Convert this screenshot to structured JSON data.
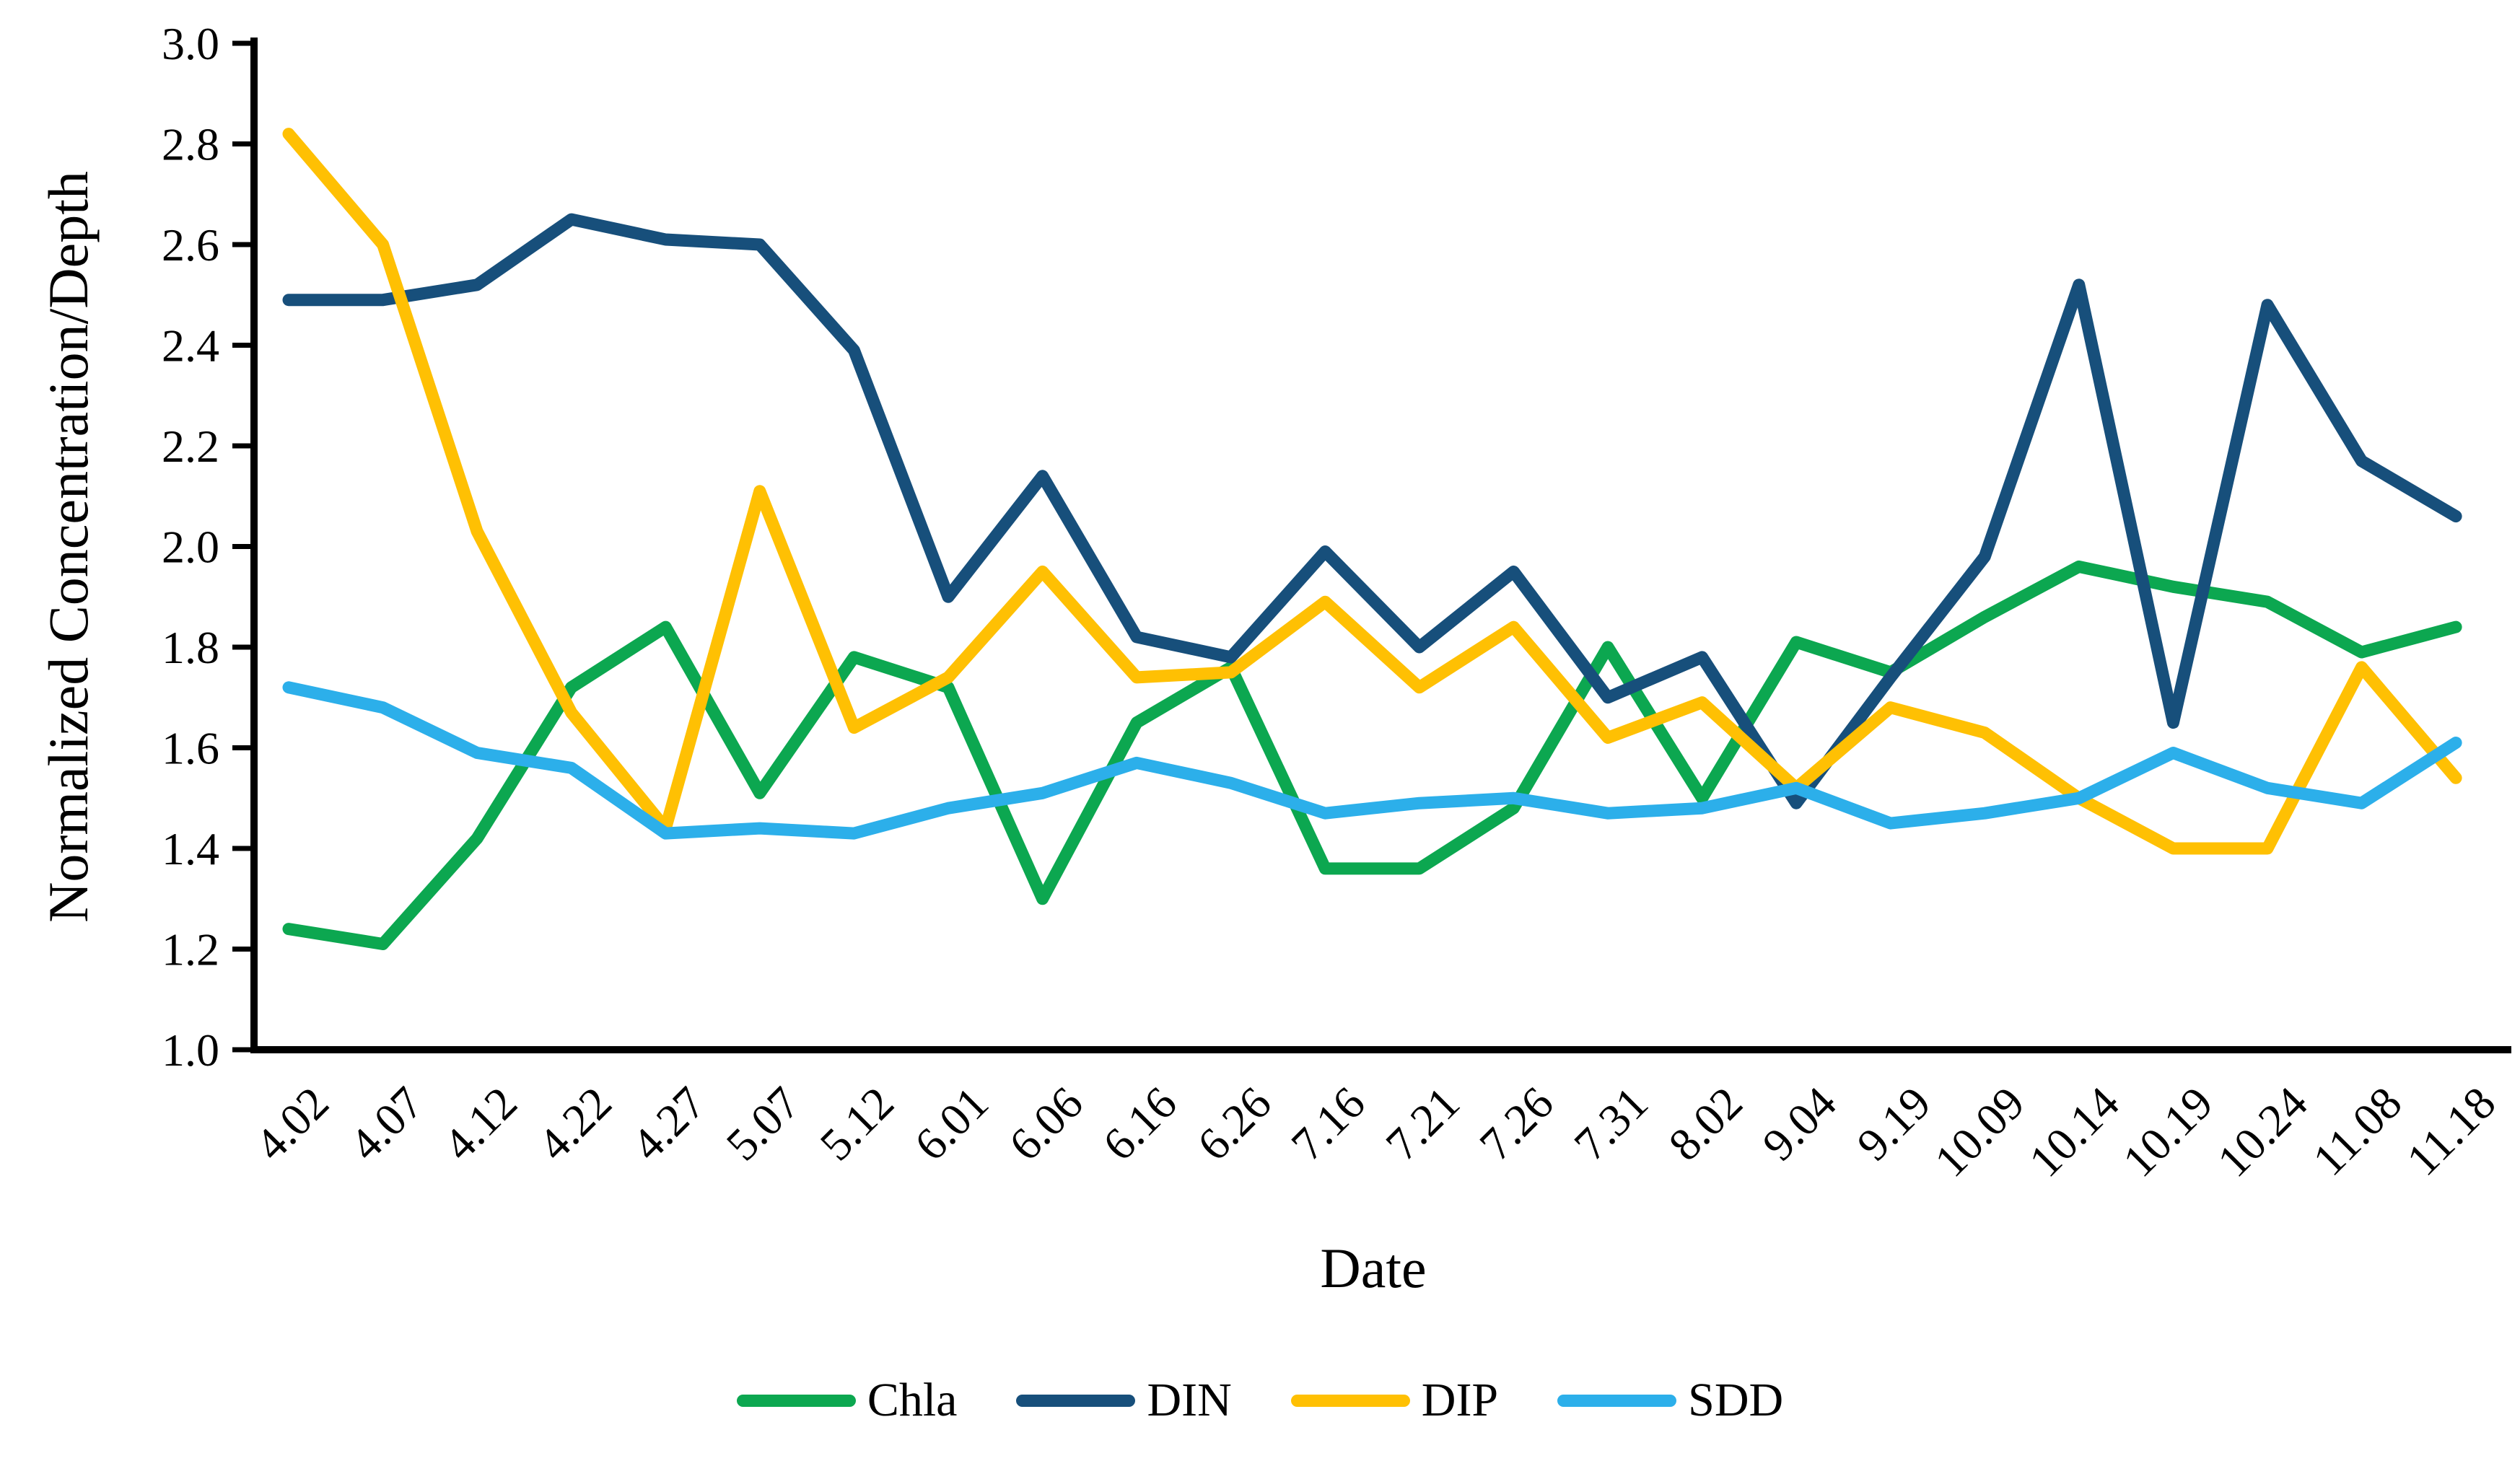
{
  "chart_data": {
    "type": "line",
    "title": "",
    "xlabel": "Date",
    "ylabel": "Normalized Concentration/Depth",
    "ylim": [
      1.0,
      3.0
    ],
    "ytick_step": 0.2,
    "ytick_labels": [
      "1.0",
      "1.2",
      "1.4",
      "1.6",
      "1.8",
      "2.0",
      "2.2",
      "2.4",
      "2.6",
      "2.8",
      "3.0"
    ],
    "grid": false,
    "legend_position": "bottom",
    "axis_color": "#000000",
    "categories": [
      "4.02",
      "4.07",
      "4.12",
      "4.22",
      "4.27",
      "5.07",
      "5.12",
      "6.01",
      "6.06",
      "6.16",
      "6.26",
      "7.16",
      "7.21",
      "7.26",
      "7.31",
      "8.02",
      "9.04",
      "9.19",
      "10.09",
      "10.14",
      "10.19",
      "10.24",
      "11.08",
      "11.18"
    ],
    "series": [
      {
        "name": "Chla",
        "color": "#0CA750",
        "values": [
          1.24,
          1.21,
          1.42,
          1.72,
          1.84,
          1.51,
          1.78,
          1.72,
          1.3,
          1.65,
          1.76,
          1.36,
          1.36,
          1.48,
          1.8,
          1.5,
          1.81,
          1.75,
          1.86,
          1.96,
          1.92,
          1.89,
          1.79,
          1.84
        ]
      },
      {
        "name": "DIN",
        "color": "#174F7B",
        "values": [
          2.49,
          2.49,
          2.52,
          2.65,
          2.61,
          2.6,
          2.39,
          1.9,
          2.14,
          1.82,
          1.78,
          1.99,
          1.8,
          1.95,
          1.7,
          1.78,
          1.49,
          1.74,
          1.98,
          2.52,
          1.65,
          2.48,
          2.17,
          2.06
        ]
      },
      {
        "name": "DIP",
        "color": "#FFC003",
        "values": [
          2.82,
          2.6,
          2.03,
          1.67,
          1.44,
          2.11,
          1.64,
          1.74,
          1.95,
          1.74,
          1.75,
          1.89,
          1.72,
          1.84,
          1.62,
          1.69,
          1.52,
          1.68,
          1.63,
          1.5,
          1.4,
          1.4,
          1.76,
          1.54
        ]
      },
      {
        "name": "SDD",
        "color": "#2CAFEA",
        "values": [
          1.72,
          1.68,
          1.59,
          1.56,
          1.43,
          1.44,
          1.43,
          1.48,
          1.51,
          1.57,
          1.53,
          1.47,
          1.49,
          1.5,
          1.47,
          1.48,
          1.52,
          1.45,
          1.47,
          1.5,
          1.59,
          1.52,
          1.49,
          1.61
        ]
      }
    ]
  }
}
